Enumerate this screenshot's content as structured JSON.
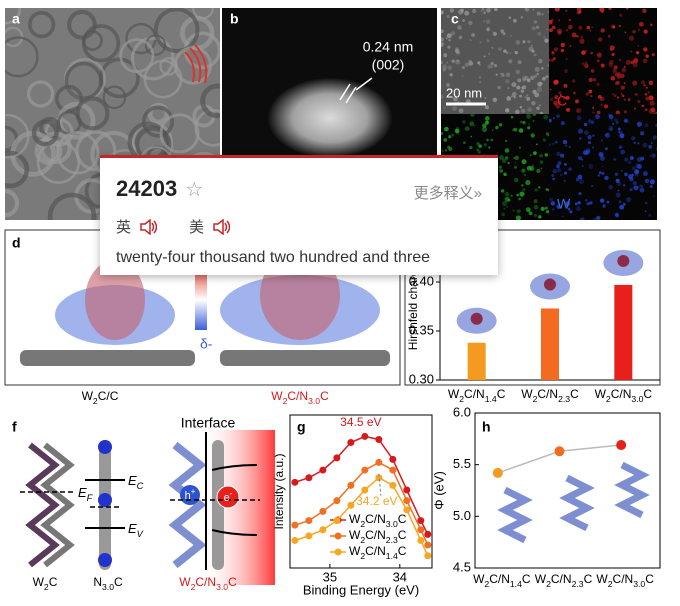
{
  "panel_labels": {
    "a": "a",
    "b": "b",
    "c": "c",
    "d": "d",
    "f": "f",
    "g": "g",
    "h": "h"
  },
  "panel_b": {
    "spacing": "0.24 nm",
    "plane": "(002)"
  },
  "panel_c": {
    "scale": "20 nm",
    "c_map": "C",
    "w_map": "W"
  },
  "panel_d": {
    "charge_sign": "δ-",
    "caption_left": "W2C/C",
    "caption_right": "W2C/N3.0C"
  },
  "panel_f": {
    "interface": "Interface",
    "fermi": "EF",
    "conduction": "EC",
    "valence": "EV",
    "hole": "h+",
    "electron": "e-",
    "caption_left": "W2C",
    "caption_middle": "N3.0C",
    "caption_right": "W2C/N3.0C"
  },
  "popup": {
    "word": "24203",
    "star": "☆",
    "more": "更多释义»",
    "uk": "英",
    "us": "美",
    "definition": "twenty-four thousand two hundred and three"
  },
  "chart_data": [
    {
      "type": "bar",
      "y_label": "Hirshfeld charge",
      "categories": [
        "W2C/N1.4C",
        "W2C/N2.3C",
        "W2C/N3.0C"
      ],
      "values": [
        0.338,
        0.373,
        0.397
      ],
      "colors": [
        "#f39a1f",
        "#f26b21",
        "#e8201b"
      ],
      "ylim": [
        0.3,
        0.45
      ],
      "yticks": [
        {
          "value": 0.3,
          "label": "0.30"
        },
        0.35,
        {
          "value": 0.4,
          "label": "0.40"
        }
      ]
    },
    {
      "type": "line",
      "x_label": "Binding Energy (eV)",
      "y_label": "Intensity (a.u.)",
      "x": [
        35.5,
        35.3,
        35.1,
        34.9,
        34.7,
        34.5,
        34.3,
        34.1,
        33.9,
        33.7,
        33.6
      ],
      "series": [
        {
          "name": "W2C/N3.0C",
          "color": "#d7191c",
          "values": [
            0.56,
            0.59,
            0.64,
            0.72,
            0.82,
            0.86,
            0.84,
            0.71,
            0.51,
            0.31,
            0.22
          ]
        },
        {
          "name": "W2C/N2.3C",
          "color": "#f07021",
          "values": [
            0.28,
            0.31,
            0.37,
            0.44,
            0.54,
            0.64,
            0.69,
            0.64,
            0.44,
            0.25,
            0.15
          ]
        },
        {
          "name": "W2C/N1.4C",
          "color": "#f5a623",
          "values": [
            0.18,
            0.21,
            0.25,
            0.31,
            0.41,
            0.51,
            0.59,
            0.54,
            0.38,
            0.18,
            0.08
          ]
        }
      ],
      "annotations": [
        {
          "text": "34.5 eV",
          "color": "#d7191c"
        },
        {
          "text": "34.2 eV",
          "color": "#f5a623"
        }
      ],
      "xlim": [
        35.57,
        33.54
      ],
      "xticks": [
        35,
        34
      ],
      "ylim": [
        0,
        1
      ]
    },
    {
      "type": "scatter",
      "y_label": "Φ (eV)",
      "categories": [
        "W2C/N1.4C",
        "W2C/N2.3C",
        "W2C/N3.0C"
      ],
      "values": [
        5.42,
        5.63,
        5.69
      ],
      "colors": [
        "#f39a1f",
        "#f26b21",
        "#e8201b"
      ],
      "line_color": "#bbbbbb",
      "ylim": [
        4.5,
        6.0
      ],
      "yticks": [
        4.5,
        {
          "value": 5,
          "label": "5.0"
        },
        5.5,
        {
          "value": 6,
          "label": "6.0"
        }
      ]
    }
  ]
}
